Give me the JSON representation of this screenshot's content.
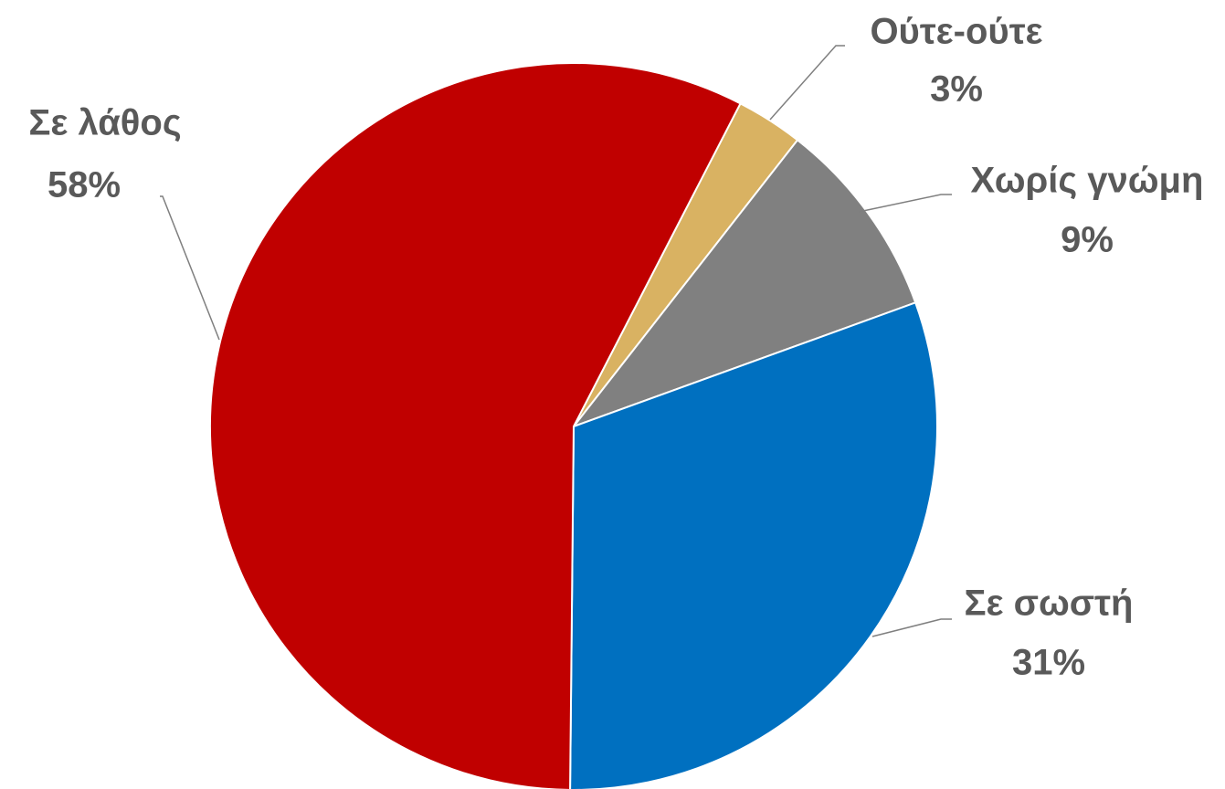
{
  "chart_data": {
    "type": "pie",
    "categories": [
      "Ούτε-ούτε",
      "Χωρίς γνώμη",
      "Σε σωστή",
      "Σε λάθος"
    ],
    "values": [
      3,
      9,
      31,
      58
    ],
    "value_labels": [
      "3%",
      "9%",
      "31%",
      "58%"
    ],
    "colors": [
      "#d9b262",
      "#808080",
      "#0070c0",
      "#c00000"
    ]
  }
}
